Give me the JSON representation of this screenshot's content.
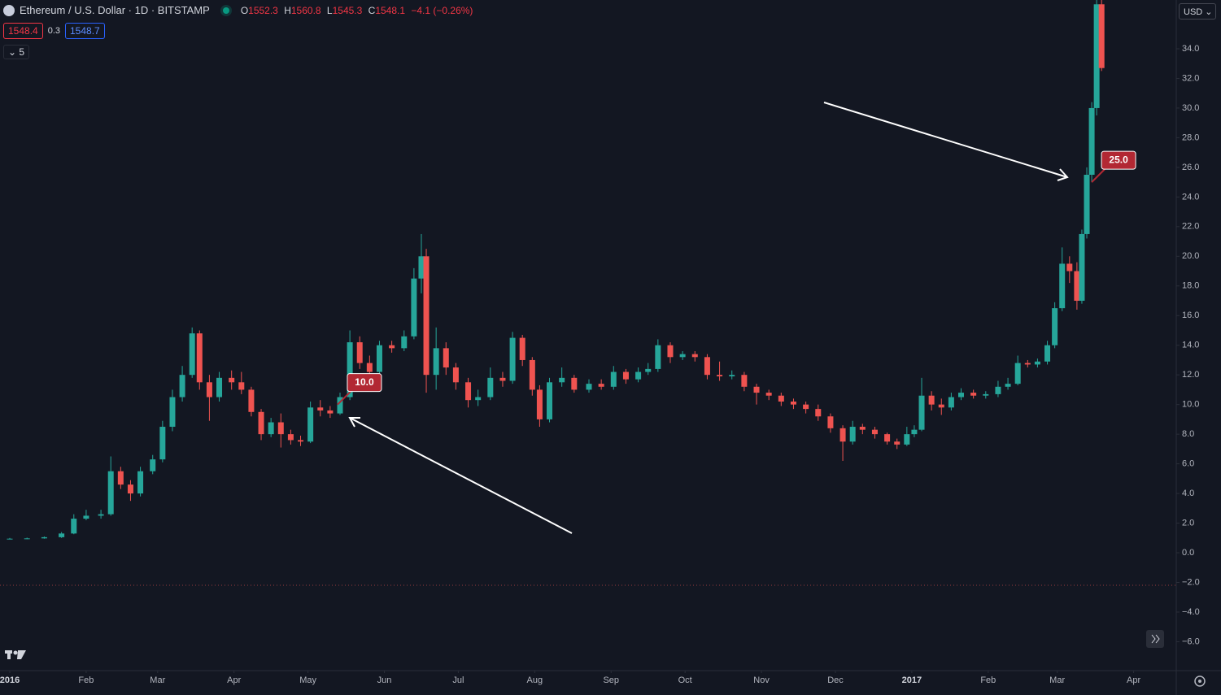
{
  "header": {
    "title": "Ethereum / U.S. Dollar · 1D · BITSTAMP",
    "ohlc": [
      {
        "label": "O",
        "value": "1552.3"
      },
      {
        "label": "H",
        "value": "1560.8"
      },
      {
        "label": "L",
        "value": "1545.3"
      },
      {
        "label": "C",
        "value": "1548.1"
      }
    ],
    "change": "−4.1 (−0.26%)",
    "bid": "1548.4",
    "spread": "0.3",
    "ask": "1548.7",
    "indicators": "5",
    "currency": "USD"
  },
  "chart_data": {
    "type": "candlestick",
    "x": [
      0,
      7,
      14,
      21,
      26,
      31,
      37,
      41,
      45,
      49,
      53,
      58,
      62,
      66,
      70,
      74,
      77,
      81,
      85,
      90,
      94,
      98,
      102,
      106,
      110,
      114,
      118,
      122,
      126,
      130,
      134,
      138,
      142,
      146,
      150,
      155,
      160,
      164,
      167,
      169,
      173,
      177,
      181,
      186,
      190,
      195,
      200,
      204,
      208,
      212,
      215,
      219,
      224,
      229,
      235,
      240,
      245,
      250,
      255,
      259,
      263,
      268,
      273,
      278,
      283,
      288,
      293,
      298,
      303,
      308,
      313,
      318,
      323,
      328,
      333,
      338,
      342,
      346,
      351,
      356,
      360,
      364,
      367,
      370,
      374,
      378,
      382,
      386,
      391,
      396,
      401,
      405,
      409,
      413,
      417,
      421,
      424,
      427,
      430,
      433,
      435,
      437,
      439,
      441,
      443
    ],
    "open": [
      0.93,
      0.95,
      0.97,
      1.05,
      1.3,
      2.3,
      2.5,
      2.6,
      5.5,
      4.6,
      4.0,
      5.5,
      6.3,
      8.5,
      10.5,
      12.0,
      14.8,
      11.5,
      10.5,
      11.8,
      11.5,
      11.0,
      9.5,
      8.0,
      8.8,
      8.0,
      7.6,
      7.5,
      9.8,
      9.6,
      9.4,
      10.5,
      14.2,
      12.8,
      12.2,
      14.0,
      13.8,
      14.6,
      18.5,
      20.0,
      12.0,
      13.8,
      12.5,
      11.5,
      10.3,
      10.5,
      11.8,
      11.6,
      14.5,
      13.0,
      11.0,
      9.0,
      11.5,
      11.8,
      11.0,
      11.4,
      11.2,
      12.2,
      11.7,
      12.2,
      12.4,
      14.0,
      13.2,
      13.4,
      13.2,
      12.0,
      11.9,
      12.0,
      11.2,
      10.8,
      10.6,
      10.2,
      10.0,
      9.7,
      9.2,
      8.4,
      7.5,
      8.5,
      8.3,
      8.0,
      7.5,
      7.3,
      8.0,
      8.3,
      10.6,
      10.0,
      9.8,
      10.5,
      10.8,
      10.6,
      10.7,
      11.2,
      11.4,
      12.8,
      12.7,
      12.9,
      14.0,
      16.5,
      19.5,
      19.0,
      17.0,
      21.5,
      25.5,
      30.0,
      37.0
    ],
    "high": [
      1.0,
      1.02,
      1.1,
      1.4,
      2.6,
      2.9,
      2.9,
      6.5,
      5.8,
      4.9,
      5.8,
      6.6,
      8.9,
      11.0,
      12.6,
      15.2,
      15.0,
      12.0,
      12.2,
      12.3,
      12.2,
      11.2,
      9.7,
      9.1,
      9.4,
      8.3,
      7.9,
      10.2,
      10.3,
      9.9,
      10.8,
      15.0,
      14.6,
      13.3,
      14.3,
      14.3,
      15.0,
      19.2,
      21.5,
      20.5,
      15.2,
      14.2,
      12.8,
      11.8,
      11.0,
      12.5,
      12.2,
      14.9,
      14.7,
      13.2,
      11.3,
      11.8,
      12.5,
      12.0,
      11.7,
      11.7,
      12.6,
      12.4,
      12.5,
      12.8,
      14.4,
      14.2,
      13.6,
      13.6,
      13.4,
      12.9,
      12.3,
      12.2,
      11.4,
      11.0,
      10.8,
      10.4,
      10.2,
      10.0,
      9.4,
      8.6,
      8.9,
      8.7,
      8.5,
      8.1,
      7.7,
      8.5,
      8.6,
      11.8,
      10.9,
      10.4,
      10.8,
      11.1,
      11.0,
      10.9,
      11.6,
      11.8,
      13.3,
      13.0,
      13.1,
      14.3,
      16.9,
      20.6,
      20.0,
      19.6,
      21.8,
      26.0,
      30.4,
      38.0,
      38.0
    ],
    "low": [
      0.9,
      0.92,
      0.95,
      1.0,
      1.25,
      2.2,
      2.3,
      2.5,
      4.3,
      3.5,
      3.8,
      5.3,
      6.1,
      8.2,
      10.2,
      11.8,
      11.0,
      8.9,
      10.2,
      11.0,
      10.7,
      9.2,
      7.6,
      7.8,
      7.1,
      7.3,
      7.2,
      7.4,
      9.2,
      9.1,
      9.3,
      10.3,
      12.4,
      11.8,
      12.0,
      13.5,
      13.6,
      14.4,
      17.5,
      10.8,
      11.0,
      12.0,
      11.0,
      9.8,
      9.9,
      10.3,
      11.2,
      11.4,
      12.6,
      10.6,
      8.5,
      8.8,
      11.2,
      10.8,
      10.8,
      11.0,
      11.0,
      11.4,
      11.5,
      12.0,
      12.2,
      12.8,
      13.0,
      12.9,
      11.7,
      11.6,
      11.7,
      10.9,
      10.0,
      10.3,
      9.9,
      9.7,
      9.4,
      8.9,
      8.1,
      6.2,
      7.3,
      8.0,
      7.7,
      7.3,
      7.0,
      7.2,
      7.8,
      8.2,
      9.6,
      9.3,
      9.6,
      10.3,
      10.4,
      10.4,
      10.5,
      11.0,
      11.3,
      12.5,
      12.5,
      12.7,
      13.8,
      16.3,
      18.2,
      16.4,
      16.8,
      21.2,
      25.0,
      29.5,
      32.5
    ],
    "close": [
      0.95,
      0.97,
      1.05,
      1.3,
      2.3,
      2.5,
      2.6,
      5.5,
      4.6,
      4.0,
      5.5,
      6.3,
      8.5,
      10.5,
      12.0,
      14.8,
      11.5,
      10.5,
      11.8,
      11.5,
      11.0,
      9.5,
      8.0,
      8.8,
      8.0,
      7.6,
      7.5,
      9.8,
      9.6,
      9.4,
      10.5,
      14.2,
      12.8,
      12.2,
      14.0,
      13.8,
      14.6,
      18.5,
      20.0,
      12.0,
      13.8,
      12.5,
      11.5,
      10.3,
      10.5,
      11.8,
      11.6,
      14.5,
      13.0,
      11.0,
      9.0,
      11.5,
      11.8,
      11.0,
      11.4,
      11.2,
      12.2,
      11.7,
      12.2,
      12.4,
      14.0,
      13.2,
      13.4,
      13.2,
      12.0,
      11.9,
      12.0,
      11.2,
      10.8,
      10.6,
      10.2,
      10.0,
      9.7,
      9.2,
      8.4,
      7.5,
      8.5,
      8.3,
      8.0,
      7.5,
      7.3,
      8.0,
      8.3,
      10.6,
      10.0,
      9.8,
      10.5,
      10.8,
      10.6,
      10.7,
      11.2,
      11.4,
      12.8,
      12.7,
      12.9,
      14.0,
      16.5,
      19.5,
      19.0,
      17.0,
      21.5,
      25.5,
      30.0,
      37.0,
      32.7
    ],
    "up_color": "#26a69a",
    "down_color": "#ef5350",
    "xlim": [
      -3.96,
      473.3
    ],
    "xticks": [
      {
        "value": 0,
        "label": "2016"
      },
      {
        "value": 31,
        "label": "Feb"
      },
      {
        "value": 60,
        "label": "Mar"
      },
      {
        "value": 91,
        "label": "Apr"
      },
      {
        "value": 121,
        "label": "May"
      },
      {
        "value": 152,
        "label": "Jun"
      },
      {
        "value": 182,
        "label": "Jul"
      },
      {
        "value": 213,
        "label": "Aug"
      },
      {
        "value": 244,
        "label": "Sep"
      },
      {
        "value": 274,
        "label": "Oct"
      },
      {
        "value": 305,
        "label": "Nov"
      },
      {
        "value": 335,
        "label": "Dec"
      },
      {
        "value": 366,
        "label": "2017"
      },
      {
        "value": 397,
        "label": "Feb"
      },
      {
        "value": 425,
        "label": "Mar"
      },
      {
        "value": 456,
        "label": "Apr"
      }
    ],
    "ylim": [
      -7.95,
      37.29
    ],
    "yticks": [
      {
        "value": -6,
        "label": "−6.0"
      },
      {
        "value": -4,
        "label": "−4.0"
      },
      {
        "value": -2,
        "label": "−2.0"
      },
      {
        "value": 0,
        "label": "0.0"
      },
      {
        "value": 2,
        "label": "2.0"
      },
      {
        "value": 4,
        "label": "4.0"
      },
      {
        "value": 6,
        "label": "6.0"
      },
      {
        "value": 8,
        "label": "8.0"
      },
      {
        "value": 10,
        "label": "10.0"
      },
      {
        "value": 12,
        "label": "12.0"
      },
      {
        "value": 14,
        "label": "14.0"
      },
      {
        "value": 16,
        "label": "16.0"
      },
      {
        "value": 18,
        "label": "18.0"
      },
      {
        "value": 20,
        "label": "20.0"
      },
      {
        "value": 22,
        "label": "22.0"
      },
      {
        "value": 24,
        "label": "24.0"
      },
      {
        "value": 26,
        "label": "26.0"
      },
      {
        "value": 28,
        "label": "28.0"
      },
      {
        "value": 30,
        "label": "30.0"
      },
      {
        "value": 32,
        "label": "32.0"
      },
      {
        "value": 34,
        "label": "34.0"
      }
    ],
    "annotations": [
      {
        "label": "10.0",
        "x": 133,
        "y": 10.0
      },
      {
        "label": "25.0",
        "x": 439,
        "y": 25.0
      }
    ]
  }
}
